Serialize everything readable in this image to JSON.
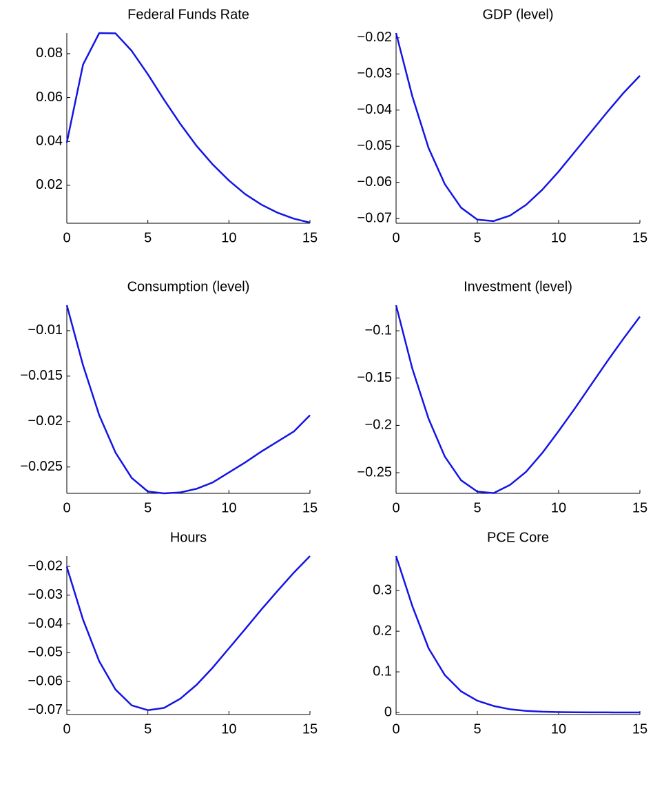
{
  "chart_data": [
    {
      "type": "line",
      "title": "Federal Funds Rate",
      "x": [
        0,
        1,
        2,
        3,
        4,
        5,
        6,
        7,
        8,
        9,
        10,
        11,
        12,
        13,
        14,
        15
      ],
      "series": [
        {
          "color": "#1414e6",
          "values": [
            0.0395,
            0.075,
            0.0894,
            0.0893,
            0.0813,
            0.0706,
            0.059,
            0.048,
            0.038,
            0.0295,
            0.0222,
            0.016,
            0.0112,
            0.0075,
            0.0048,
            0.003
          ]
        }
      ],
      "xlim": [
        0,
        15
      ],
      "xticks": [
        0,
        5,
        10,
        15
      ],
      "ylim": [
        0.0027,
        0.0894
      ],
      "yticks": [
        0.02,
        0.04,
        0.06,
        0.08
      ]
    },
    {
      "type": "line",
      "title": "GDP (level)",
      "x": [
        0,
        1,
        2,
        3,
        4,
        5,
        6,
        7,
        8,
        9,
        10,
        11,
        12,
        13,
        14,
        15
      ],
      "series": [
        {
          "color": "#1414e6",
          "values": [
            -0.0187,
            -0.0362,
            -0.0505,
            -0.0605,
            -0.067,
            -0.0703,
            -0.0707,
            -0.0692,
            -0.0662,
            -0.062,
            -0.057,
            -0.0515,
            -0.046,
            -0.0405,
            -0.0352,
            -0.0305
          ]
        }
      ],
      "xlim": [
        0,
        15
      ],
      "xticks": [
        0,
        5,
        10,
        15
      ],
      "ylim": [
        -0.0713,
        -0.0187
      ],
      "yticks": [
        {
          "value": -0.07,
          "label": "−0.07"
        },
        {
          "value": -0.06,
          "label": "−0.06"
        },
        {
          "value": -0.05,
          "label": "−0.05"
        },
        {
          "value": -0.04,
          "label": "−0.04"
        },
        {
          "value": -0.03,
          "label": "−0.03"
        },
        {
          "value": -0.02,
          "label": "−0.02"
        }
      ]
    },
    {
      "type": "line",
      "title": "Consumption (level)",
      "x": [
        0,
        1,
        2,
        3,
        4,
        5,
        6,
        7,
        8,
        9,
        10,
        11,
        12,
        13,
        14,
        15
      ],
      "series": [
        {
          "color": "#1414e6",
          "values": [
            -0.0072,
            -0.0138,
            -0.0193,
            -0.0234,
            -0.0262,
            -0.0277,
            -0.0279,
            -0.0278,
            -0.0274,
            -0.0267,
            -0.0256,
            -0.0245,
            -0.0233,
            -0.0222,
            -0.0211,
            -0.0193
          ]
        }
      ],
      "xlim": [
        0,
        15
      ],
      "xticks": [
        0,
        5,
        10,
        15
      ],
      "ylim": [
        -0.0279,
        -0.0072
      ],
      "yticks": [
        {
          "value": -0.025,
          "label": "−0.025"
        },
        {
          "value": -0.02,
          "label": "−0.02"
        },
        {
          "value": -0.015,
          "label": "−0.015"
        },
        {
          "value": -0.01,
          "label": "−0.01"
        }
      ]
    },
    {
      "type": "line",
      "title": "Investment (level)",
      "x": [
        0,
        1,
        2,
        3,
        4,
        5,
        6,
        7,
        8,
        9,
        10,
        11,
        12,
        13,
        14,
        15
      ],
      "series": [
        {
          "color": "#1414e6",
          "values": [
            -0.073,
            -0.14,
            -0.193,
            -0.233,
            -0.258,
            -0.27,
            -0.2715,
            -0.263,
            -0.249,
            -0.229,
            -0.206,
            -0.182,
            -0.157,
            -0.132,
            -0.108,
            -0.085
          ]
        }
      ],
      "xlim": [
        0,
        15
      ],
      "xticks": [
        0,
        5,
        10,
        15
      ],
      "ylim": [
        -0.2718,
        -0.073
      ],
      "yticks": [
        {
          "value": -0.25,
          "label": "−0.25"
        },
        {
          "value": -0.2,
          "label": "−0.2"
        },
        {
          "value": -0.15,
          "label": "−0.15"
        },
        {
          "value": -0.1,
          "label": "−0.1"
        }
      ]
    },
    {
      "type": "line",
      "title": "Hours",
      "x": [
        0,
        1,
        2,
        3,
        4,
        5,
        6,
        7,
        8,
        9,
        10,
        11,
        12,
        13,
        14,
        15
      ],
      "series": [
        {
          "color": "#1414e6",
          "values": [
            -0.0202,
            -0.0385,
            -0.053,
            -0.0628,
            -0.0683,
            -0.07,
            -0.0692,
            -0.066,
            -0.0612,
            -0.0552,
            -0.0485,
            -0.0418,
            -0.035,
            -0.0285,
            -0.0222,
            -0.0164
          ]
        }
      ],
      "xlim": [
        0,
        15
      ],
      "xticks": [
        0,
        5,
        10,
        15
      ],
      "ylim": [
        -0.0715,
        -0.0164
      ],
      "yticks": [
        {
          "value": -0.07,
          "label": "−0.07"
        },
        {
          "value": -0.06,
          "label": "−0.06"
        },
        {
          "value": -0.05,
          "label": "−0.05"
        },
        {
          "value": -0.04,
          "label": "−0.04"
        },
        {
          "value": -0.03,
          "label": "−0.03"
        },
        {
          "value": -0.02,
          "label": "−0.02"
        }
      ]
    },
    {
      "type": "line",
      "title": "PCE Core",
      "x": [
        0,
        1,
        2,
        3,
        4,
        5,
        6,
        7,
        8,
        9,
        10,
        11,
        12,
        13,
        14,
        15
      ],
      "series": [
        {
          "color": "#1414e6",
          "values": [
            0.385,
            0.262,
            0.158,
            0.092,
            0.052,
            0.029,
            0.016,
            0.008,
            0.004,
            0.002,
            0.001,
            0.0005,
            0.0003,
            0.0002,
            0.0001,
            0.0001
          ]
        }
      ],
      "xlim": [
        0,
        15
      ],
      "xticks": [
        0,
        5,
        10,
        15
      ],
      "ylim": [
        -0.005,
        0.385
      ],
      "yticks": [
        0,
        0.1,
        0.2,
        0.3
      ]
    }
  ]
}
